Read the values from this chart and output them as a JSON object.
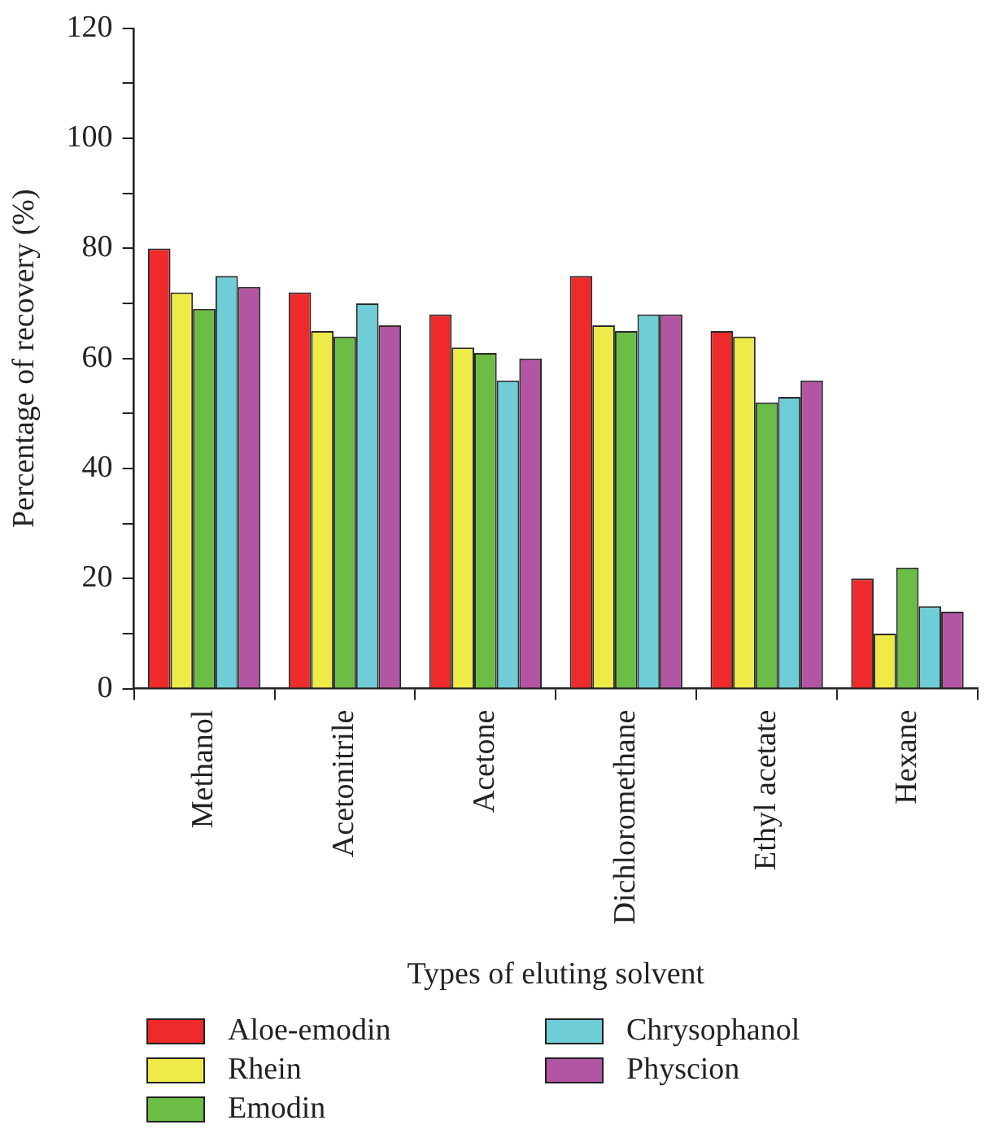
{
  "chart_data": {
    "type": "bar",
    "xlabel": "Types of eluting solvent",
    "ylabel": "Percentage of recovery (%)",
    "categories": [
      "Methanol",
      "Acetonitrile",
      "Acetone",
      "Dichloromethane",
      "Ethyl acetate",
      "Hexane"
    ],
    "series": [
      {
        "name": "Aloe-emodin",
        "color": "#ee2a2a",
        "values": [
          80,
          72,
          68,
          75,
          65,
          20
        ]
      },
      {
        "name": "Rhein",
        "color": "#eeea48",
        "values": [
          72,
          65,
          62,
          66,
          64,
          10
        ]
      },
      {
        "name": "Emodin",
        "color": "#6cbd45",
        "values": [
          69,
          64,
          61,
          65,
          52,
          22
        ]
      },
      {
        "name": "Chrysophanol",
        "color": "#6fcdd8",
        "values": [
          75,
          70,
          56,
          68,
          53,
          15
        ]
      },
      {
        "name": "Physcion",
        "color": "#b255a3",
        "values": [
          73,
          66,
          60,
          68,
          56,
          14
        ]
      }
    ],
    "ylim": [
      0,
      120
    ],
    "yticks": [
      0,
      {
        "value": 10,
        "label": null
      },
      20,
      {
        "value": 30,
        "label": null
      },
      40,
      {
        "value": 50,
        "label": null
      },
      60,
      {
        "value": 70,
        "label": null
      },
      80,
      {
        "value": 90,
        "label": null
      },
      100,
      {
        "value": 110,
        "label": null
      },
      120
    ],
    "grid": false,
    "legend": "bottom"
  }
}
